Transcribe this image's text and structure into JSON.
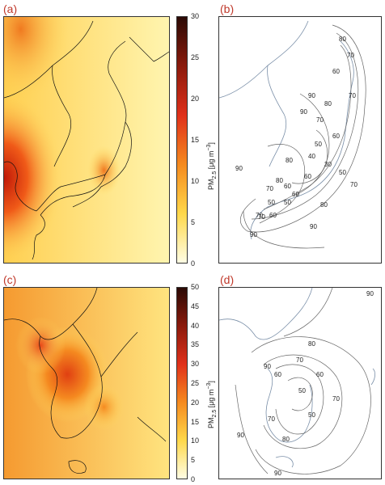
{
  "panels": {
    "a": {
      "label": "(a)"
    },
    "b": {
      "label": "(b)",
      "contour_labels": [
        "80",
        "70",
        "60",
        "90",
        "90",
        "70",
        "80",
        "70",
        "60",
        "50",
        "40",
        "30",
        "50",
        "70",
        "60",
        "80",
        "90",
        "80",
        "80",
        "70",
        "60",
        "60",
        "50",
        "50",
        "70",
        "90",
        "90",
        "70",
        "60"
      ]
    },
    "c": {
      "label": "(c)"
    },
    "d": {
      "label": "(d)",
      "contour_labels": [
        "90",
        "80",
        "90",
        "70",
        "70",
        "60",
        "60",
        "50",
        "50",
        "70",
        "80",
        "90",
        "90"
      ]
    }
  },
  "colorbar_top": {
    "label_main": "PM",
    "label_sub": "2.5",
    "label_unit": " [μg m",
    "label_exp": "−3",
    "label_end": "]",
    "ticks": [
      "30",
      "25",
      "20",
      "15",
      "10",
      "5",
      "0"
    ]
  },
  "colorbar_bottom": {
    "label_main": "PM",
    "label_sub": "2.5",
    "label_unit": " [μg m",
    "label_exp": "−3",
    "label_end": "]",
    "ticks": [
      "50",
      "45",
      "40",
      "35",
      "30",
      "25",
      "20",
      "15",
      "10",
      "5",
      "0"
    ]
  },
  "colors": {
    "cb_top": "#2b0a05",
    "cb_high": "#8b1a0c",
    "cb_mid": "#e0301a",
    "cb_orange": "#f58a1f",
    "cb_yellow": "#ffd84a",
    "cb_low": "#fffde4",
    "map_bg": "#ffee8a",
    "contour": "#666666",
    "coast": "#7a8fa8"
  }
}
